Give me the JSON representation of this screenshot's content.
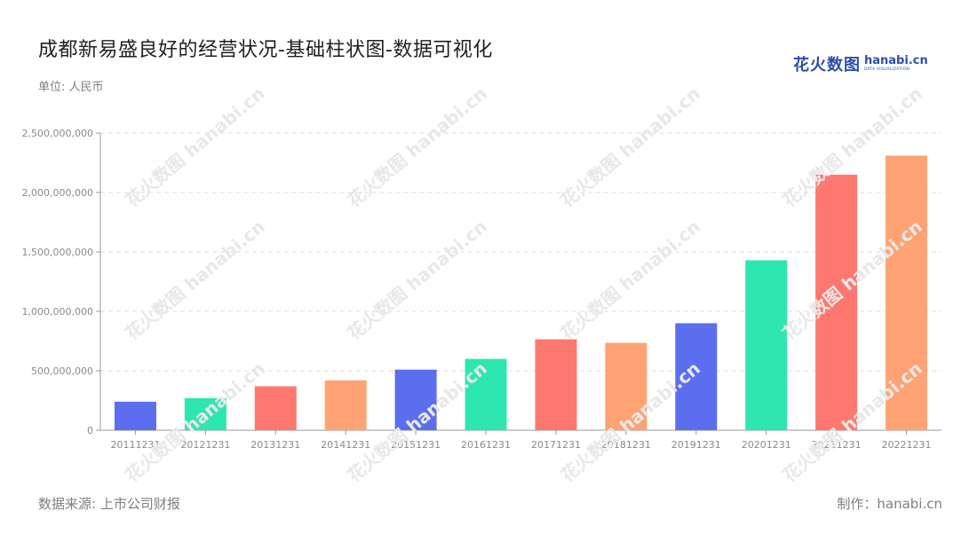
{
  "header": {
    "title": "成都新易盛良好的经营状况-基础柱状图-数据可视化",
    "unit": "单位: 人民币"
  },
  "brand": {
    "cn": "花火数图",
    "en": "hanabi.cn",
    "sub": "DATA VISUALIZATION"
  },
  "footer": {
    "source": "数据来源: 上市公司财报",
    "maker": "制作：hanabi.cn"
  },
  "watermark": {
    "text": "花火数图 hanabi.cn"
  },
  "chart_data": {
    "type": "bar",
    "categories": [
      "20111231",
      "20121231",
      "20131231",
      "20141231",
      "20151231",
      "20161231",
      "20171231",
      "20181231",
      "20191231",
      "20201231",
      "20211231",
      "20221231"
    ],
    "values": [
      240000000,
      270000000,
      370000000,
      420000000,
      510000000,
      600000000,
      765000000,
      735000000,
      900000000,
      1430000000,
      2150000000,
      2310000000
    ],
    "colors": [
      "#5b6fee",
      "#2ee6b0",
      "#ff7870",
      "#ffa374",
      "#5b6fee",
      "#2ee6b0",
      "#ff7870",
      "#ffa374",
      "#5b6fee",
      "#2ee6b0",
      "#ff7870",
      "#ffa374"
    ],
    "y_ticks": [
      "0",
      "500,000,000",
      "1,000,000,000",
      "1,500,000,000",
      "2,000,000,000",
      "2,500,000,000"
    ],
    "ylim": [
      0,
      2500000000
    ],
    "grid": true,
    "title": "成都新易盛良好的经营状况-基础柱状图-数据可视化",
    "xlabel": "",
    "ylabel": ""
  }
}
